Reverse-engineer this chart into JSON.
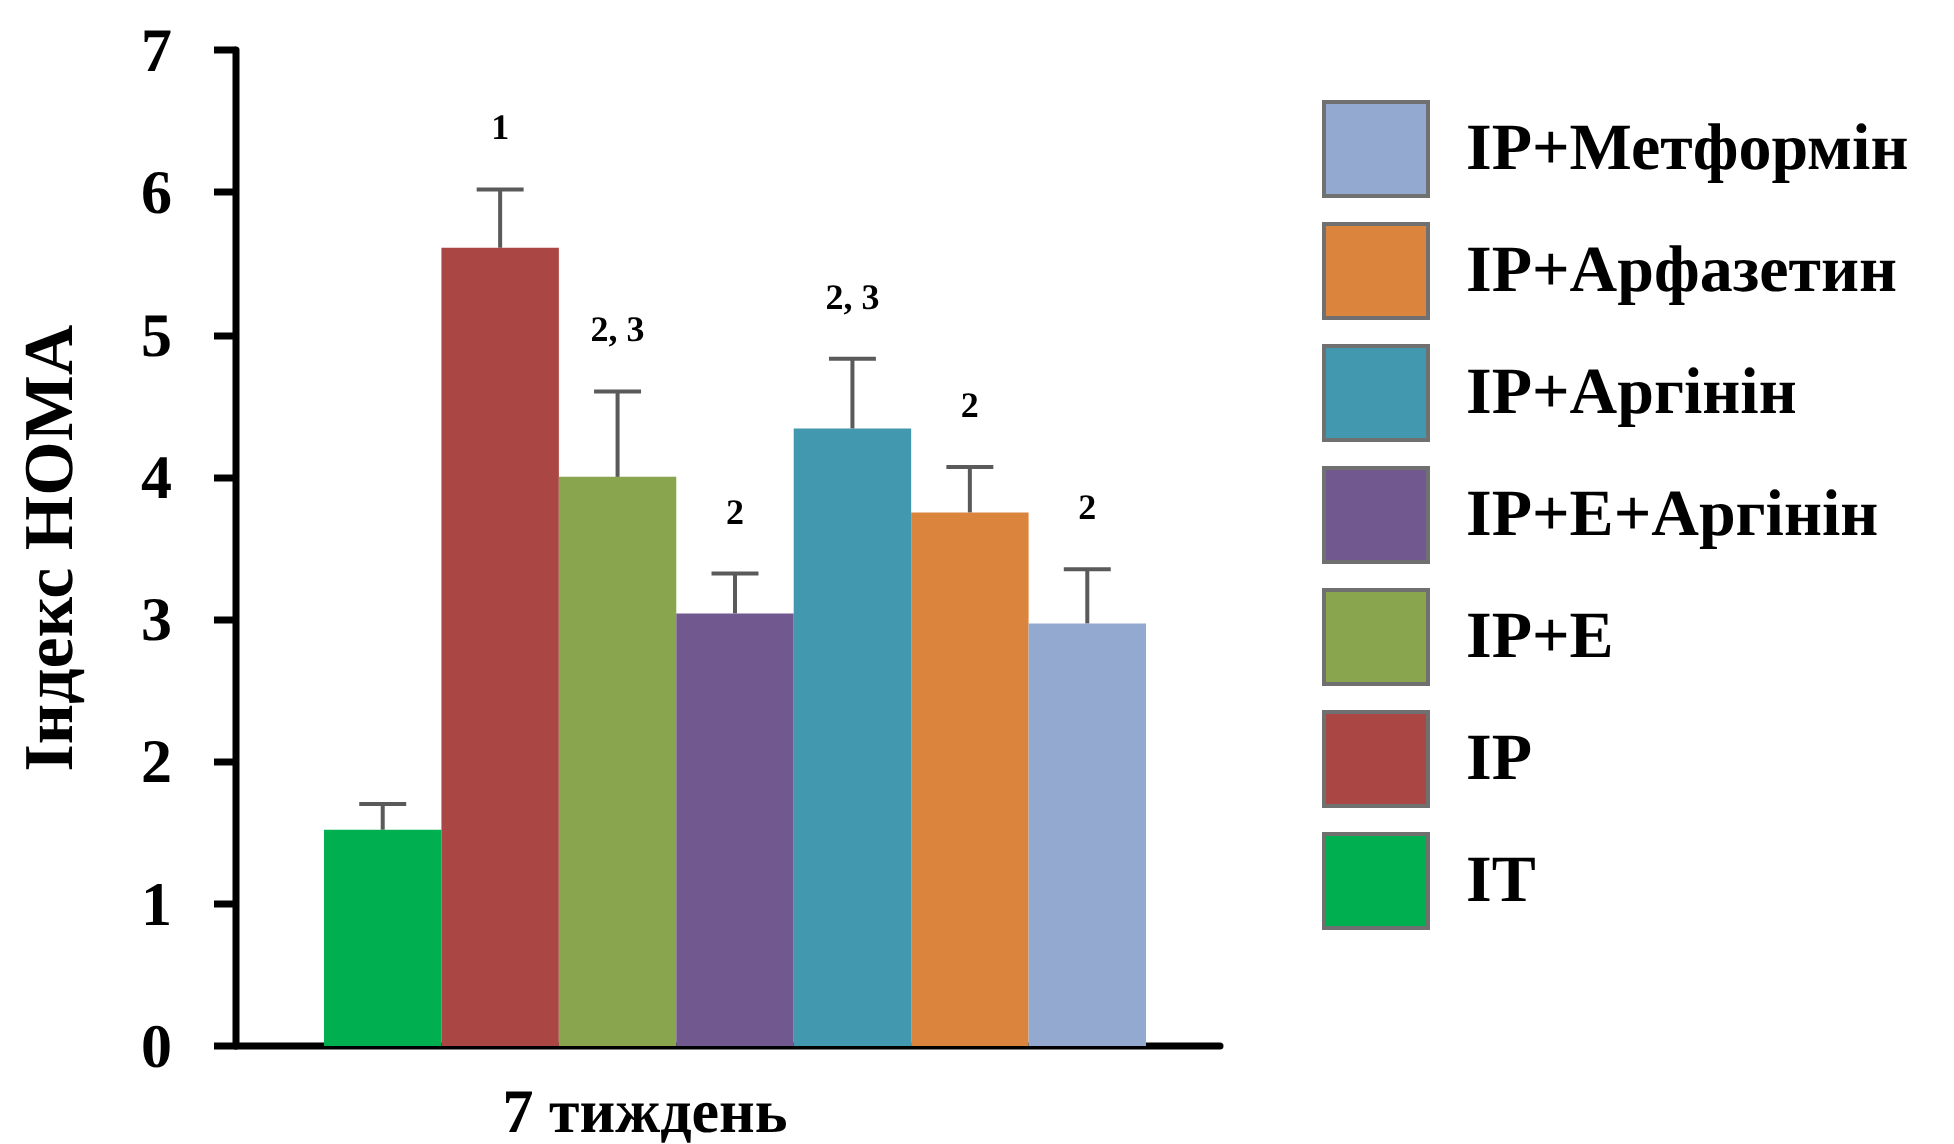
{
  "chart_data": {
    "type": "bar",
    "ylabel": "Індекс HOMA",
    "xlabel": "7 тиждень",
    "categories": [
      null
    ],
    "series": [
      {
        "name": "IT",
        "color": "#00b050",
        "values": [
          1.52
        ],
        "errors": [
          [
            1.52,
            1.7
          ]
        ]
      },
      {
        "name": "IP",
        "color": "#aa4643",
        "values": [
          5.61
        ],
        "errors": [
          [
            5.61,
            6.02
          ]
        ]
      },
      {
        "name": "IP+E",
        "color": "#89a54e",
        "values": [
          4.0
        ],
        "errors": [
          [
            4.0,
            4.6
          ]
        ]
      },
      {
        "name": "IP+E+Аргінін",
        "color": "#71588f",
        "values": [
          3.04
        ],
        "errors": [
          [
            3.04,
            3.32
          ]
        ]
      },
      {
        "name": "IP+Аргінін",
        "color": "#4198af",
        "values": [
          4.34
        ],
        "errors": [
          [
            4.34,
            4.83
          ]
        ]
      },
      {
        "name": "IP+Арфазетин",
        "color": "#db843d",
        "values": [
          3.75
        ],
        "errors": [
          [
            3.75,
            4.07
          ]
        ]
      },
      {
        "name": "IP+Метформін",
        "color": "#93a9cf",
        "values": [
          2.97
        ],
        "errors": [
          [
            2.97,
            3.35
          ]
        ]
      }
    ],
    "ylim": [
      0,
      7
    ],
    "yticks": [
      0,
      1,
      2,
      3,
      4,
      5,
      6,
      7
    ],
    "grid": false,
    "legend": "right",
    "annotations": [
      "1",
      "2, 3",
      "2",
      "2, 3",
      "2",
      "2"
    ]
  }
}
